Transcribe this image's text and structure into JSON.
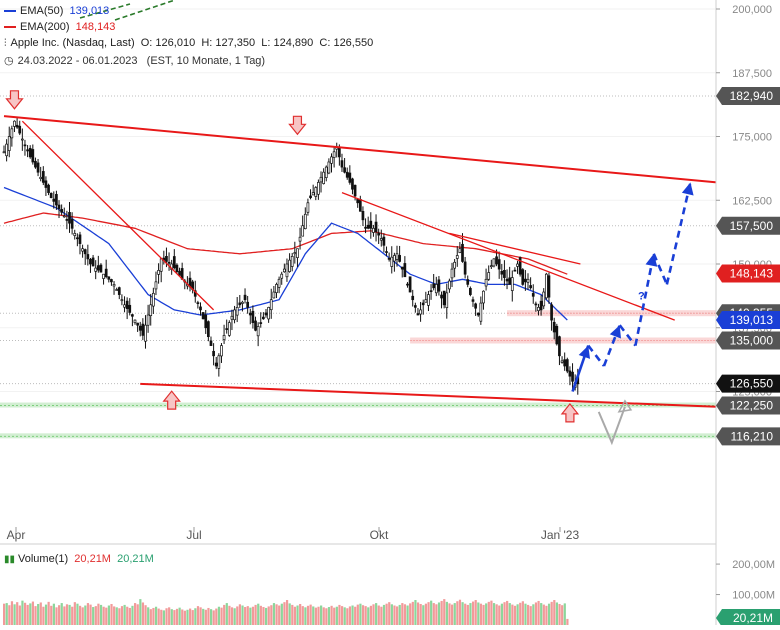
{
  "legend": {
    "ema50_label": "EMA(50)",
    "ema50_value": "139,013",
    "ema200_label": "EMA(200)",
    "ema200_value": "148,143",
    "instrument": "Apple Inc. (Nasdaq, Last)",
    "open": "O: 126,010",
    "high": "H: 127,350",
    "low": "L: 124,890",
    "close": "C: 126,550",
    "date_range": "24.03.2022 - 06.01.2023",
    "interval": "(EST, 10 Monate, 1 Tag)"
  },
  "volume": {
    "label": "Volume(1)",
    "value": "20,21M",
    "axis_ticks": [
      "200,00M",
      "100,00M"
    ],
    "last_badge": "20,21M"
  },
  "colors": {
    "bull": "#ffffff",
    "bear": "#111111",
    "ema50": "#1a3fd6",
    "ema200": "#e02020",
    "trend": "#e81818",
    "projection": "#1a3fd6",
    "support_zone": "#f4a6a6",
    "green_zone": "#7fcf7f",
    "grid": "#bdbdbd"
  },
  "chart_data": {
    "type": "candlestick",
    "title": "Apple Inc. (Nasdaq, Last)",
    "x_tick_labels": [
      "Apr",
      "Jul",
      "Okt",
      "Jan '23"
    ],
    "y_tick_labels": [
      "200,000",
      "187,500",
      "175,000",
      "162,500",
      "150,000",
      "137,500",
      "125,000"
    ],
    "ylim": [
      111,
      202
    ],
    "price_badges": [
      {
        "label": "182,940",
        "value": 182.94,
        "color": "#555555"
      },
      {
        "label": "157,500",
        "value": 157.5,
        "color": "#555555"
      },
      {
        "label": "148,143",
        "value": 148.143,
        "color": "#e02020"
      },
      {
        "label": "140,355",
        "value": 140.355,
        "color": "#555555"
      },
      {
        "label": "139,013",
        "value": 139.013,
        "color": "#1a3fd6"
      },
      {
        "label": "135,000",
        "value": 135.0,
        "color": "#555555"
      },
      {
        "label": "126,550",
        "value": 126.55,
        "color": "#111111"
      },
      {
        "label": "122,250",
        "value": 122.25,
        "color": "#555555"
      },
      {
        "label": "116,210",
        "value": 116.21,
        "color": "#555555"
      }
    ],
    "price_anchors": [
      [
        0,
        172
      ],
      [
        4,
        178
      ],
      [
        10,
        171
      ],
      [
        18,
        163
      ],
      [
        25,
        158
      ],
      [
        30,
        153
      ],
      [
        33,
        150
      ],
      [
        38,
        148
      ],
      [
        42,
        146
      ],
      [
        46,
        142
      ],
      [
        50,
        139
      ],
      [
        53,
        136
      ],
      [
        56,
        142
      ],
      [
        60,
        151
      ],
      [
        64,
        150
      ],
      [
        68,
        147
      ],
      [
        72,
        145
      ],
      [
        75,
        141
      ],
      [
        79,
        134
      ],
      [
        81,
        130
      ],
      [
        84,
        136
      ],
      [
        88,
        141
      ],
      [
        92,
        143
      ],
      [
        96,
        137
      ],
      [
        100,
        140
      ],
      [
        104,
        146
      ],
      [
        108,
        150
      ],
      [
        112,
        153
      ],
      [
        116,
        162
      ],
      [
        120,
        166
      ],
      [
        124,
        170
      ],
      [
        127,
        173
      ],
      [
        129,
        169
      ],
      [
        132,
        166
      ],
      [
        135,
        162
      ],
      [
        138,
        157
      ],
      [
        141,
        157
      ],
      [
        144,
        155
      ],
      [
        147,
        151
      ],
      [
        150,
        152
      ],
      [
        154,
        146
      ],
      [
        158,
        140
      ],
      [
        162,
        144
      ],
      [
        165,
        146
      ],
      [
        168,
        142
      ],
      [
        171,
        149
      ],
      [
        174,
        153
      ],
      [
        176,
        148
      ],
      [
        178,
        144
      ],
      [
        181,
        140
      ],
      [
        184,
        147
      ],
      [
        187,
        151
      ],
      [
        190,
        148
      ],
      [
        193,
        146
      ],
      [
        196,
        150
      ],
      [
        198,
        146
      ],
      [
        200,
        147
      ],
      [
        203,
        142
      ],
      [
        205,
        141
      ],
      [
        207,
        148
      ],
      [
        209,
        139
      ],
      [
        212,
        132
      ],
      [
        215,
        129
      ],
      [
        217,
        127
      ],
      [
        219,
        126.5
      ]
    ],
    "ema50": [
      [
        0,
        165
      ],
      [
        20,
        161
      ],
      [
        40,
        154
      ],
      [
        55,
        144
      ],
      [
        65,
        141
      ],
      [
        75,
        140
      ],
      [
        90,
        141
      ],
      [
        105,
        143
      ],
      [
        115,
        152
      ],
      [
        125,
        158
      ],
      [
        135,
        156
      ],
      [
        145,
        152
      ],
      [
        155,
        148
      ],
      [
        165,
        146
      ],
      [
        175,
        147
      ],
      [
        185,
        146
      ],
      [
        195,
        146
      ],
      [
        205,
        144
      ],
      [
        215,
        139
      ]
    ],
    "ema200": [
      [
        0,
        158
      ],
      [
        15,
        160
      ],
      [
        30,
        159
      ],
      [
        50,
        157
      ],
      [
        70,
        153
      ],
      [
        90,
        152
      ],
      [
        110,
        153
      ],
      [
        125,
        156
      ],
      [
        140,
        156.5
      ],
      [
        160,
        154
      ],
      [
        180,
        153
      ],
      [
        200,
        151
      ],
      [
        215,
        148
      ]
    ],
    "support_zones": [
      {
        "value": 140.355,
        "from_index": 192
      },
      {
        "value": 135.0,
        "from_index": 155
      }
    ],
    "green_zones": [
      122.25,
      116.21
    ],
    "trend_lines": [
      {
        "from": [
          0,
          179
        ],
        "to": [
          272,
          166
        ],
        "width": 2
      },
      {
        "from": [
          52,
          126.5
        ],
        "to": [
          272,
          122
        ],
        "width": 2
      },
      {
        "from": [
          7,
          178
        ],
        "to": [
          80,
          141
        ],
        "width": 1.3
      },
      {
        "from": [
          129,
          164
        ],
        "to": [
          256,
          139
        ],
        "width": 1.3
      },
      {
        "from": [
          170,
          156
        ],
        "to": [
          220,
          150
        ],
        "width": 1.3
      }
    ],
    "arrows_down": [
      [
        4,
        182
      ],
      [
        112,
        177
      ]
    ],
    "arrows_up": [
      [
        64,
        123.5
      ],
      [
        216,
        121
      ]
    ],
    "projection_path": [
      [
        217,
        125
      ],
      [
        223,
        134
      ],
      [
        229,
        130
      ],
      [
        235,
        138
      ],
      [
        241,
        134
      ],
      [
        248,
        152
      ],
      [
        253,
        146
      ],
      [
        262,
        166
      ]
    ],
    "projection_question_mark": "?",
    "projection_label_point": [
      242,
      143
    ],
    "grey_v": [
      [
        227,
        121
      ],
      [
        232,
        115
      ],
      [
        237,
        122
      ]
    ],
    "volume_values": [
      70,
      72,
      65,
      78,
      68,
      75,
      64,
      80,
      73,
      66,
      71,
      77,
      62,
      69,
      74,
      60,
      67,
      76,
      63,
      70,
      58,
      65,
      72,
      61,
      68,
      66,
      60,
      75,
      70,
      63,
      58,
      64,
      72,
      67,
      59,
      62,
      70,
      66,
      60,
      57,
      64,
      69,
      61,
      58,
      55,
      62,
      66,
      60,
      56,
      63,
      72,
      68,
      85,
      74,
      65,
      58,
      52,
      56,
      60,
      54,
      50,
      48,
      55,
      58,
      52,
      49,
      53,
      57,
      51,
      47,
      50,
      54,
      49,
      55,
      62,
      58,
      53,
      50,
      56,
      52,
      48,
      54,
      60,
      57,
      66,
      72,
      63,
      58,
      55,
      61,
      68,
      64,
      59,
      62,
      57,
      60,
      66,
      70,
      63,
      59,
      56,
      61,
      65,
      72,
      68,
      64,
      70,
      75,
      82,
      71,
      66,
      60,
      64,
      69,
      62,
      58,
      63,
      67,
      61,
      57,
      60,
      64,
      58,
      55,
      59,
      63,
      57,
      60,
      66,
      62,
      58,
      55,
      61,
      64,
      60,
      67,
      70,
      65,
      62,
      58,
      63,
      68,
      72,
      64,
      60,
      66,
      70,
      75,
      68,
      64,
      61,
      66,
      72,
      68,
      64,
      71,
      76,
      82,
      74,
      69,
      65,
      70,
      75,
      80,
      72,
      68,
      74,
      79,
      85,
      76,
      71,
      67,
      72,
      78,
      83,
      75,
      70,
      66,
      72,
      77,
      82,
      74,
      70,
      66,
      71,
      76,
      80,
      72,
      68,
      64,
      70,
      75,
      79,
      72,
      67,
      63,
      68,
      73,
      78,
      70,
      66,
      62,
      68,
      74,
      79,
      72,
      67,
      63,
      70,
      76,
      82,
      74,
      69,
      65,
      71,
      20
    ],
    "volume_ylim": [
      0,
      220
    ]
  }
}
